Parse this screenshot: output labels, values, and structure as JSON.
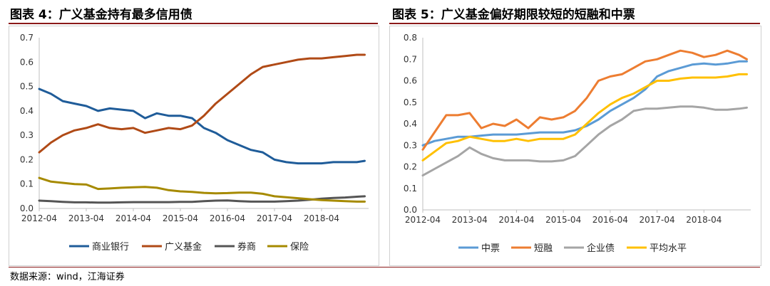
{
  "source": "数据来源：wind，江海证券",
  "colors": {
    "title_rule": "#8b1a1a"
  },
  "chart_data": [
    {
      "type": "line",
      "title": "图表 4：广义基金持有最多信用债",
      "xlabel": "",
      "ylabel": "",
      "x_ticks": [
        "2012-04",
        "2013-04",
        "2014-04",
        "2015-04",
        "2016-04",
        "2017-04",
        "2018-04"
      ],
      "y_ticks": [
        "0.0",
        "0.1",
        "0.2",
        "0.3",
        "0.4",
        "0.5",
        "0.6",
        "0.7"
      ],
      "ylim": [
        0,
        0.7
      ],
      "x_start": "2012-04",
      "x_end": "2019-04",
      "grid": false,
      "legend_position": "bottom",
      "x": [
        "2012-04",
        "2012-07",
        "2012-10",
        "2013-01",
        "2013-04",
        "2013-07",
        "2013-10",
        "2014-01",
        "2014-04",
        "2014-07",
        "2014-10",
        "2015-01",
        "2015-04",
        "2015-07",
        "2015-10",
        "2016-01",
        "2016-04",
        "2016-07",
        "2016-10",
        "2017-01",
        "2017-04",
        "2017-07",
        "2017-10",
        "2018-01",
        "2018-04",
        "2018-07",
        "2018-10",
        "2019-01",
        "2019-03"
      ],
      "series": [
        {
          "name": "商业银行",
          "color": "#1f5c99",
          "values": [
            0.49,
            0.47,
            0.44,
            0.43,
            0.42,
            0.4,
            0.41,
            0.405,
            0.4,
            0.37,
            0.39,
            0.38,
            0.38,
            0.37,
            0.33,
            0.31,
            0.28,
            0.26,
            0.24,
            0.23,
            0.2,
            0.19,
            0.185,
            0.185,
            0.185,
            0.19,
            0.19,
            0.19,
            0.195
          ]
        },
        {
          "name": "广义基金",
          "color": "#b04a16",
          "values": [
            0.23,
            0.27,
            0.3,
            0.32,
            0.33,
            0.345,
            0.33,
            0.325,
            0.33,
            0.31,
            0.32,
            0.33,
            0.325,
            0.34,
            0.38,
            0.43,
            0.47,
            0.51,
            0.55,
            0.58,
            0.59,
            0.6,
            0.61,
            0.615,
            0.615,
            0.62,
            0.625,
            0.63,
            0.63
          ]
        },
        {
          "name": "券商",
          "color": "#555555",
          "values": [
            0.032,
            0.03,
            0.027,
            0.025,
            0.025,
            0.024,
            0.024,
            0.025,
            0.026,
            0.026,
            0.026,
            0.026,
            0.027,
            0.027,
            0.03,
            0.032,
            0.033,
            0.03,
            0.028,
            0.028,
            0.028,
            0.03,
            0.032,
            0.036,
            0.04,
            0.043,
            0.045,
            0.048,
            0.05
          ]
        },
        {
          "name": "保险",
          "color": "#a68a00",
          "values": [
            0.125,
            0.11,
            0.105,
            0.1,
            0.098,
            0.08,
            0.082,
            0.085,
            0.087,
            0.088,
            0.085,
            0.075,
            0.07,
            0.068,
            0.064,
            0.062,
            0.063,
            0.065,
            0.065,
            0.06,
            0.05,
            0.046,
            0.042,
            0.038,
            0.034,
            0.032,
            0.03,
            0.028,
            0.028
          ]
        }
      ]
    },
    {
      "type": "line",
      "title": "图表 5：广义基金偏好期限较短的短融和中票",
      "xlabel": "",
      "ylabel": "",
      "x_ticks": [
        "2012-04",
        "2013-04",
        "2014-04",
        "2015-04",
        "2016-04",
        "2017-04",
        "2018-04"
      ],
      "y_ticks": [
        "0.0",
        "0.1",
        "0.2",
        "0.3",
        "0.4",
        "0.5",
        "0.6",
        "0.7",
        "0.8"
      ],
      "ylim": [
        0,
        0.8
      ],
      "x_start": "2012-04",
      "x_end": "2019-04",
      "grid": false,
      "legend_position": "bottom",
      "x": [
        "2012-04",
        "2012-07",
        "2012-10",
        "2013-01",
        "2013-04",
        "2013-07",
        "2013-10",
        "2014-01",
        "2014-04",
        "2014-07",
        "2014-10",
        "2015-01",
        "2015-04",
        "2015-07",
        "2015-10",
        "2016-01",
        "2016-04",
        "2016-07",
        "2016-10",
        "2017-01",
        "2017-04",
        "2017-07",
        "2017-10",
        "2018-01",
        "2018-04",
        "2018-07",
        "2018-10",
        "2019-01",
        "2019-03"
      ],
      "series": [
        {
          "name": "中票",
          "color": "#5b9bd5",
          "values": [
            0.3,
            0.32,
            0.33,
            0.34,
            0.34,
            0.345,
            0.35,
            0.35,
            0.35,
            0.355,
            0.36,
            0.36,
            0.36,
            0.37,
            0.39,
            0.42,
            0.46,
            0.49,
            0.52,
            0.56,
            0.62,
            0.645,
            0.66,
            0.675,
            0.68,
            0.675,
            0.68,
            0.69,
            0.69
          ]
        },
        {
          "name": "短融",
          "color": "#ed7d31",
          "values": [
            0.28,
            0.36,
            0.44,
            0.44,
            0.45,
            0.38,
            0.4,
            0.39,
            0.42,
            0.38,
            0.43,
            0.42,
            0.43,
            0.46,
            0.52,
            0.6,
            0.62,
            0.63,
            0.66,
            0.69,
            0.7,
            0.72,
            0.74,
            0.73,
            0.71,
            0.72,
            0.74,
            0.72,
            0.7
          ]
        },
        {
          "name": "企业债",
          "color": "#a5a5a5",
          "values": [
            0.16,
            0.19,
            0.22,
            0.25,
            0.29,
            0.26,
            0.24,
            0.23,
            0.23,
            0.23,
            0.225,
            0.225,
            0.23,
            0.25,
            0.3,
            0.35,
            0.39,
            0.42,
            0.46,
            0.47,
            0.47,
            0.475,
            0.48,
            0.48,
            0.475,
            0.465,
            0.465,
            0.47,
            0.475
          ]
        },
        {
          "name": "平均水平",
          "color": "#ffc000",
          "values": [
            0.23,
            0.27,
            0.31,
            0.32,
            0.34,
            0.33,
            0.32,
            0.32,
            0.33,
            0.32,
            0.33,
            0.33,
            0.33,
            0.35,
            0.4,
            0.45,
            0.49,
            0.52,
            0.54,
            0.57,
            0.6,
            0.6,
            0.61,
            0.615,
            0.615,
            0.615,
            0.62,
            0.63,
            0.63
          ]
        }
      ]
    }
  ]
}
